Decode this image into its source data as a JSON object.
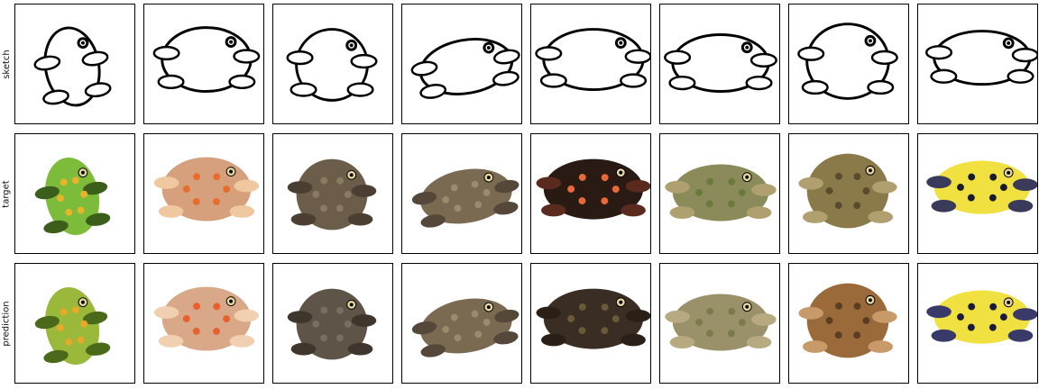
{
  "figure": {
    "row_labels": [
      "sketch",
      "target",
      "prediction"
    ],
    "rows": [
      {
        "label": "sketch",
        "cells": [
          {
            "subject": "frog sketch",
            "palette": [
              "#000000",
              "#ffffff"
            ]
          },
          {
            "subject": "frog sketch",
            "palette": [
              "#000000",
              "#ffffff"
            ]
          },
          {
            "subject": "toad sketch",
            "palette": [
              "#000000",
              "#ffffff"
            ]
          },
          {
            "subject": "frog sketch",
            "palette": [
              "#000000",
              "#ffffff"
            ]
          },
          {
            "subject": "frog sketch",
            "palette": [
              "#000000",
              "#ffffff"
            ]
          },
          {
            "subject": "frog sketch",
            "palette": [
              "#000000",
              "#ffffff"
            ]
          },
          {
            "subject": "frog sketch",
            "palette": [
              "#000000",
              "#ffffff"
            ]
          },
          {
            "subject": "frog sketch",
            "palette": [
              "#000000",
              "#ffffff"
            ]
          }
        ]
      },
      {
        "label": "target",
        "cells": [
          {
            "subject": "green tree frog",
            "palette": [
              "#7dbb3a",
              "#e8b42a",
              "#3b5e1a"
            ]
          },
          {
            "subject": "tan frog with orange feet",
            "palette": [
              "#d6a07d",
              "#e86c2c",
              "#f0c8a0"
            ]
          },
          {
            "subject": "brown toad",
            "palette": [
              "#6b5d4a",
              "#8a7a62",
              "#4a3f32"
            ]
          },
          {
            "subject": "brown frog",
            "palette": [
              "#7a6a52",
              "#9a8a6e",
              "#55483a"
            ]
          },
          {
            "subject": "black frog with orange spots",
            "palette": [
              "#2a1a14",
              "#e86a3a",
              "#5a2a1e"
            ]
          },
          {
            "subject": "green-brown toad",
            "palette": [
              "#8a8a5a",
              "#6a7a3a",
              "#b0a070"
            ]
          },
          {
            "subject": "spotted brown frog",
            "palette": [
              "#8a7a4a",
              "#5a4a2e",
              "#b0a070"
            ]
          },
          {
            "subject": "yellow and black frog",
            "palette": [
              "#f0e040",
              "#1a1a2e",
              "#3a3a5a"
            ]
          }
        ]
      },
      {
        "label": "prediction",
        "cells": [
          {
            "subject": "green tree frog",
            "palette": [
              "#9ab83a",
              "#e8a82a",
              "#4a6a1a"
            ]
          },
          {
            "subject": "tan frog with orange feet",
            "palette": [
              "#d8a888",
              "#e8602c",
              "#f0d0b0"
            ]
          },
          {
            "subject": "brown toad",
            "palette": [
              "#5e5548",
              "#7a6e5e",
              "#3e362c"
            ]
          },
          {
            "subject": "brown frog",
            "palette": [
              "#7a6a52",
              "#9a8a6e",
              "#55483a"
            ]
          },
          {
            "subject": "dark frog",
            "palette": [
              "#3a2e24",
              "#6a5a3a",
              "#2a2018"
            ]
          },
          {
            "subject": "green-brown toad",
            "palette": [
              "#9a906a",
              "#7a7a4a",
              "#b8aa80"
            ]
          },
          {
            "subject": "spotted brown frog",
            "palette": [
              "#9a6a3a",
              "#5a3e22",
              "#c89a6a"
            ]
          },
          {
            "subject": "yellow and black frog",
            "palette": [
              "#f0e040",
              "#1a1a3e",
              "#3a3a6a"
            ]
          }
        ]
      }
    ]
  }
}
